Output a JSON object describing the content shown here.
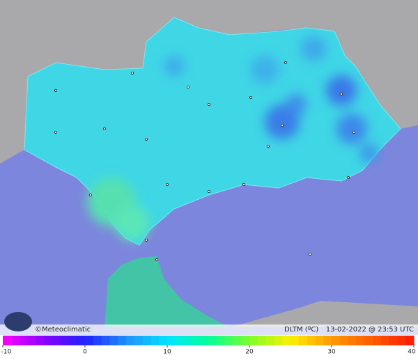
{
  "footer": {
    "brand": "©Meteoclimatic",
    "variable": "DLTM (ºC)",
    "timestamp": "13-02-2022 @ 23:53 UTC"
  },
  "colorbar": {
    "range": [
      -10,
      40
    ],
    "ticks": [
      -10,
      0,
      10,
      20,
      30,
      40
    ]
  }
}
